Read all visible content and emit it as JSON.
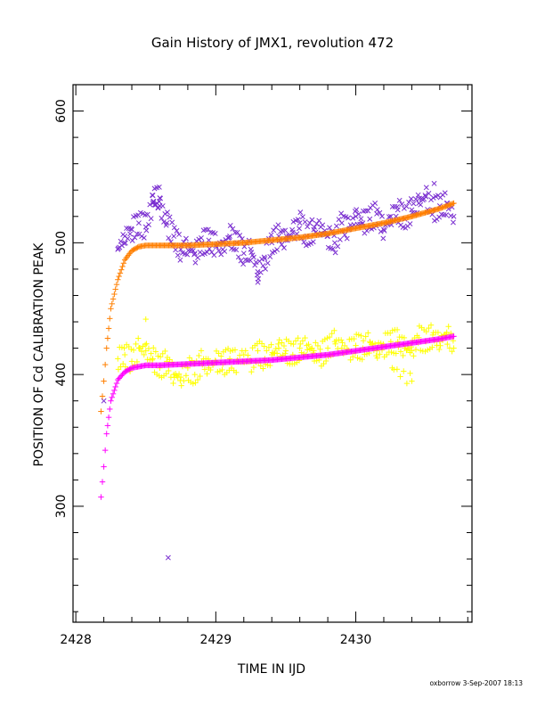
{
  "chart_data": {
    "type": "scatter",
    "title": "Gain History of JMX1, revolution 472",
    "xlabel": "TIME IN IJD",
    "ylabel": "POSITION OF Cd CALIBRATION PEAK",
    "xlim": [
      2427.98,
      2430.83
    ],
    "ylim": [
      212,
      620
    ],
    "x_ticks": [
      2428,
      2429,
      2430
    ],
    "x_tick_labels": [
      "2428",
      "2429",
      "2430"
    ],
    "y_ticks": [
      300,
      400,
      500,
      600
    ],
    "y_tick_labels": [
      "300",
      "400",
      "500",
      "600"
    ],
    "x_minor_step": 0.2,
    "y_minor_step": 20,
    "grid": false,
    "legend": "none",
    "series": [
      {
        "marker": "x",
        "color": "#7a2fd0",
        "x": [
          2428.3,
          2428.35,
          2428.4,
          2428.45,
          2428.5,
          2428.55,
          2428.6,
          2428.65,
          2428.7,
          2428.75,
          2428.8,
          2428.85,
          2428.9,
          2428.95,
          2429.0,
          2429.05,
          2429.1,
          2429.15,
          2429.2,
          2429.25,
          2429.3,
          2429.35,
          2429.4,
          2429.45,
          2429.5,
          2429.55,
          2429.6,
          2429.65,
          2429.7,
          2429.75,
          2429.8,
          2429.85,
          2429.9,
          2429.95,
          2430.0,
          2430.05,
          2430.1,
          2430.15,
          2430.2,
          2430.25,
          2430.3,
          2430.35,
          2430.4,
          2430.45,
          2430.5,
          2430.55,
          2430.6,
          2430.65,
          2430.7,
          2430.56,
          2429.3,
          2428.55,
          2428.6,
          2428.2
        ],
        "y": [
          495,
          505,
          510,
          515,
          512,
          530,
          528,
          515,
          505,
          495,
          498,
          492,
          500,
          502,
          498,
          495,
          505,
          500,
          492,
          495,
          478,
          488,
          500,
          505,
          502,
          508,
          515,
          505,
          510,
          512,
          505,
          500,
          515,
          510,
          520,
          515,
          518,
          522,
          510,
          520,
          525,
          518,
          525,
          530,
          535,
          525,
          528,
          530,
          520,
          545,
          470,
          536,
          534,
          380
        ],
        "outliers_x": [
          2428.66
        ],
        "outliers_y": [
          261
        ]
      },
      {
        "marker": "+",
        "color": "#ffff00",
        "x": [
          2428.3,
          2428.35,
          2428.4,
          2428.45,
          2428.5,
          2428.55,
          2428.6,
          2428.65,
          2428.7,
          2428.75,
          2428.8,
          2428.85,
          2428.9,
          2428.95,
          2429.0,
          2429.05,
          2429.1,
          2429.15,
          2429.2,
          2429.25,
          2429.3,
          2429.35,
          2429.4,
          2429.45,
          2429.5,
          2429.55,
          2429.6,
          2429.65,
          2429.7,
          2429.75,
          2429.8,
          2429.85,
          2429.9,
          2429.95,
          2430.0,
          2430.05,
          2430.1,
          2430.15,
          2430.2,
          2430.25,
          2430.3,
          2430.35,
          2430.4,
          2430.45,
          2430.5,
          2430.55,
          2430.6,
          2430.65,
          2430.7,
          2428.5,
          2430.26,
          2430.4
        ],
        "y": [
          412,
          415,
          410,
          420,
          418,
          412,
          405,
          410,
          400,
          398,
          405,
          400,
          410,
          405,
          410,
          408,
          412,
          410,
          415,
          410,
          418,
          412,
          415,
          420,
          418,
          415,
          420,
          422,
          418,
          415,
          420,
          425,
          420,
          418,
          422,
          420,
          425,
          418,
          422,
          425,
          425,
          420,
          418,
          428,
          425,
          430,
          425,
          432,
          420,
          442,
          405,
          395
        ]
      },
      {
        "marker": "+",
        "color": "#ff7f00",
        "fit": "curve",
        "x": [
          2428.18,
          2428.2,
          2428.22,
          2428.25,
          2428.3,
          2428.35,
          2428.4,
          2428.45,
          2428.5,
          2428.6,
          2428.8,
          2429.0,
          2429.2,
          2429.4,
          2429.6,
          2429.8,
          2430.0,
          2430.2,
          2430.4,
          2430.6,
          2430.7
        ],
        "y": [
          372,
          395,
          420,
          450,
          472,
          487,
          494,
          497,
          498,
          498,
          498,
          499,
          500,
          502,
          504,
          507,
          511,
          515,
          520,
          526,
          530
        ]
      },
      {
        "marker": "+",
        "color": "#ff00ff",
        "fit": "curve",
        "x": [
          2428.18,
          2428.2,
          2428.22,
          2428.25,
          2428.3,
          2428.35,
          2428.4,
          2428.45,
          2428.5,
          2428.6,
          2428.8,
          2429.0,
          2429.2,
          2429.4,
          2429.6,
          2429.8,
          2430.0,
          2430.2,
          2430.4,
          2430.6,
          2430.7
        ],
        "y": [
          307,
          330,
          355,
          380,
          396,
          402,
          405,
          406,
          407,
          407,
          408,
          409,
          410,
          411,
          413,
          415,
          418,
          421,
          424,
          427,
          429
        ]
      }
    ]
  },
  "footer": "oxborrow  3-Sep-2007 18:13"
}
